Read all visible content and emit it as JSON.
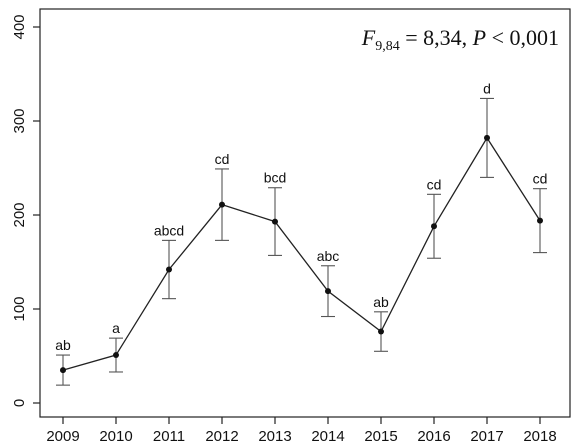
{
  "chart_data": {
    "type": "line",
    "x": [
      "2009",
      "2010",
      "2011",
      "2012",
      "2013",
      "2014",
      "2015",
      "2016",
      "2017",
      "2018"
    ],
    "series": [
      {
        "values": [
          35,
          51,
          142,
          211,
          193,
          119,
          76,
          188,
          282,
          194
        ],
        "error_upper": [
          51,
          69,
          173,
          249,
          229,
          146,
          97,
          222,
          324,
          228
        ],
        "error_lower": [
          19,
          33,
          111,
          173,
          157,
          92,
          55,
          154,
          240,
          160
        ]
      }
    ],
    "significance_labels": [
      "ab",
      "a",
      "abcd",
      "cd",
      "bcd",
      "abc",
      "ab",
      "cd",
      "d",
      "cd"
    ],
    "y_ticks": [
      0,
      100,
      200,
      300,
      400
    ],
    "ylim": [
      0,
      400
    ],
    "annotation": {
      "italic_prefix": "F",
      "subscript": "9,84",
      "middle": " = 8,34, ",
      "italic_p": "P",
      "suffix": " < 0,001"
    },
    "grid": false
  }
}
